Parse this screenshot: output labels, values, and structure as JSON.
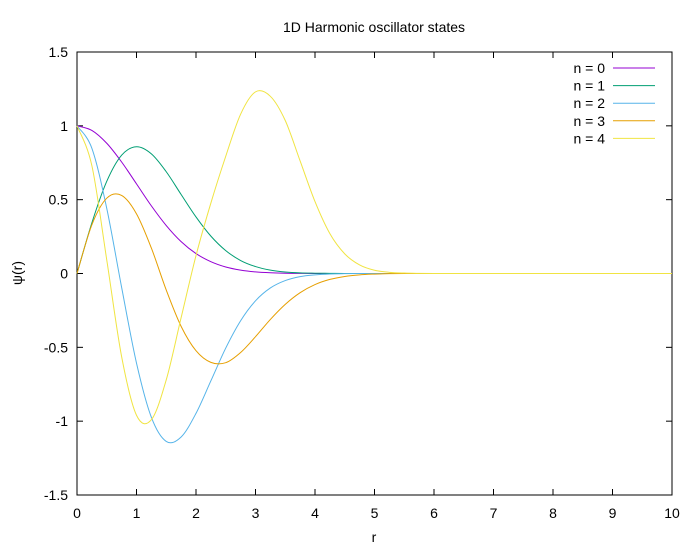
{
  "chart_data": {
    "type": "line",
    "title": "1D Harmonic oscillator states",
    "xlabel": "r",
    "ylabel": "ψ(r)",
    "xlim": [
      0,
      10
    ],
    "ylim": [
      -1.5,
      1.5
    ],
    "x_ticks": [
      "0",
      "1",
      "2",
      "3",
      "4",
      "5",
      "6",
      "7",
      "8",
      "9",
      "10"
    ],
    "y_ticks": [
      "-1.5",
      "-1",
      "-0.5",
      "0",
      "0.5",
      "1",
      "1.5"
    ],
    "grid": false,
    "legend_position": "top-right",
    "x": [
      0,
      0.25,
      0.5,
      0.75,
      1,
      1.25,
      1.5,
      1.75,
      2,
      2.25,
      2.5,
      2.75,
      3,
      3.25,
      3.5,
      3.75,
      4,
      4.25,
      4.5,
      4.75,
      5,
      5.25,
      5.5,
      5.75,
      6,
      6.25,
      6.5,
      6.75,
      7,
      7.25,
      7.5,
      7.75,
      8,
      8.25,
      8.5,
      8.75,
      9,
      9.25,
      9.5,
      9.75,
      10
    ],
    "series": [
      {
        "name": "n = 0",
        "color": "#9400d3",
        "values": [
          1,
          0.969,
          0.882,
          0.755,
          0.607,
          0.458,
          0.325,
          0.216,
          0.135,
          0.08,
          0.044,
          0.023,
          0.011,
          0.005,
          0.002,
          0.001,
          0,
          0,
          0,
          0,
          0,
          0,
          0,
          0,
          0,
          0,
          0,
          0,
          0,
          0,
          0,
          0,
          0,
          0,
          0,
          0,
          0,
          0,
          0,
          0,
          0
        ]
      },
      {
        "name": "n = 1",
        "color": "#009e73",
        "values": [
          0,
          0.343,
          0.624,
          0.801,
          0.858,
          0.81,
          0.689,
          0.535,
          0.383,
          0.253,
          0.155,
          0.088,
          0.047,
          0.023,
          0.01,
          0.004,
          0.002,
          0.001,
          0,
          0,
          0,
          0,
          0,
          0,
          0,
          0,
          0,
          0,
          0,
          0,
          0,
          0,
          0,
          0,
          0,
          0,
          0,
          0,
          0,
          0,
          0
        ]
      },
      {
        "name": "n = 2",
        "color": "#56b4e9",
        "values": [
          1,
          0.848,
          0.441,
          -0.094,
          -0.607,
          -0.974,
          -1.137,
          -1.107,
          -0.947,
          -0.727,
          -0.505,
          -0.32,
          -0.185,
          -0.098,
          -0.048,
          -0.021,
          -0.009,
          -0.003,
          -0.001,
          0,
          0,
          0,
          0,
          0,
          0,
          0,
          0,
          0,
          0,
          0,
          0,
          0,
          0,
          0,
          0,
          0,
          0,
          0,
          0,
          0,
          0
        ]
      },
      {
        "name": "n = 3",
        "color": "#e69f00",
        "values": [
          0,
          0.33,
          0.51,
          0.529,
          0.404,
          0.172,
          -0.112,
          -0.358,
          -0.523,
          -0.602,
          -0.604,
          -0.535,
          -0.428,
          -0.311,
          -0.209,
          -0.13,
          -0.075,
          -0.04,
          -0.02,
          -0.009,
          -0.004,
          -0.001,
          0,
          0,
          0,
          0,
          0,
          0,
          0,
          0,
          0,
          0,
          0,
          0,
          0,
          0,
          0,
          0,
          0,
          0,
          0
        ]
      },
      {
        "name": "n = 4",
        "color": "#f0e442",
        "values": [
          1,
          0.73,
          0.092,
          -0.563,
          -0.96,
          -0.99,
          -0.72,
          -0.299,
          0.121,
          0.477,
          0.794,
          1.079,
          1.23,
          1.2,
          1.036,
          0.762,
          0.487,
          0.27,
          0.133,
          0.058,
          0.022,
          0.008,
          0.003,
          0.001,
          0,
          0,
          0,
          0,
          0,
          0,
          0,
          0,
          0,
          0,
          0,
          0,
          0,
          0,
          0,
          0,
          0
        ]
      }
    ]
  }
}
